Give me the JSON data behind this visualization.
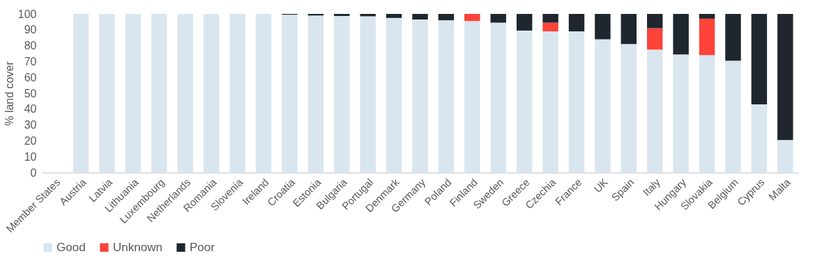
{
  "chart_data": {
    "type": "bar",
    "stacked": true,
    "ylabel": "% land cover",
    "categories": [
      "Member States",
      "Austria",
      "Latvia",
      "Lithuania",
      "Luxembourg",
      "Netherlands",
      "Romania",
      "Slovenia",
      "Ireland",
      "Croatia",
      "Estonia",
      "Bulgaria",
      "Portugal",
      "Denmark",
      "Germany",
      "Poland",
      "Finland",
      "Sweden",
      "Greece",
      "Czechia",
      "France",
      "UK",
      "Spain",
      "Italy",
      "Hungary",
      "Slovakia",
      "Belgium",
      "Cyprus",
      "Malta"
    ],
    "series": [
      {
        "name": "Good",
        "color": "#d9e6f0",
        "values": [
          null,
          100,
          100,
          100,
          100,
          100,
          100,
          100,
          100,
          99.5,
          99,
          98.7,
          98.5,
          97.5,
          96.5,
          96,
          95.5,
          94.5,
          89.5,
          89,
          89,
          84,
          81,
          77.5,
          74.5,
          74,
          70.5,
          43,
          20.5
        ]
      },
      {
        "name": "Unknown",
        "color": "#fd433a",
        "values": [
          null,
          0,
          0,
          0,
          0,
          0,
          0,
          0,
          0,
          0,
          0,
          0,
          0,
          0,
          0,
          0,
          4.5,
          0,
          0,
          5.5,
          0,
          0,
          0,
          13.5,
          0,
          23,
          0,
          0,
          0
        ]
      },
      {
        "name": "Poor",
        "color": "#1f262d",
        "values": [
          null,
          0,
          0,
          0,
          0,
          0,
          0,
          0,
          0,
          0.5,
          1,
          1.3,
          1.5,
          2.5,
          3.5,
          4,
          0,
          5.5,
          10.5,
          5.5,
          11,
          16,
          19,
          9,
          25.5,
          3,
          29.5,
          57,
          79.5
        ]
      }
    ],
    "ylim": [
      0,
      100
    ],
    "yticks": [
      0,
      10,
      20,
      30,
      40,
      50,
      60,
      70,
      80,
      90,
      100
    ],
    "grid": false,
    "legend": "bottom"
  }
}
